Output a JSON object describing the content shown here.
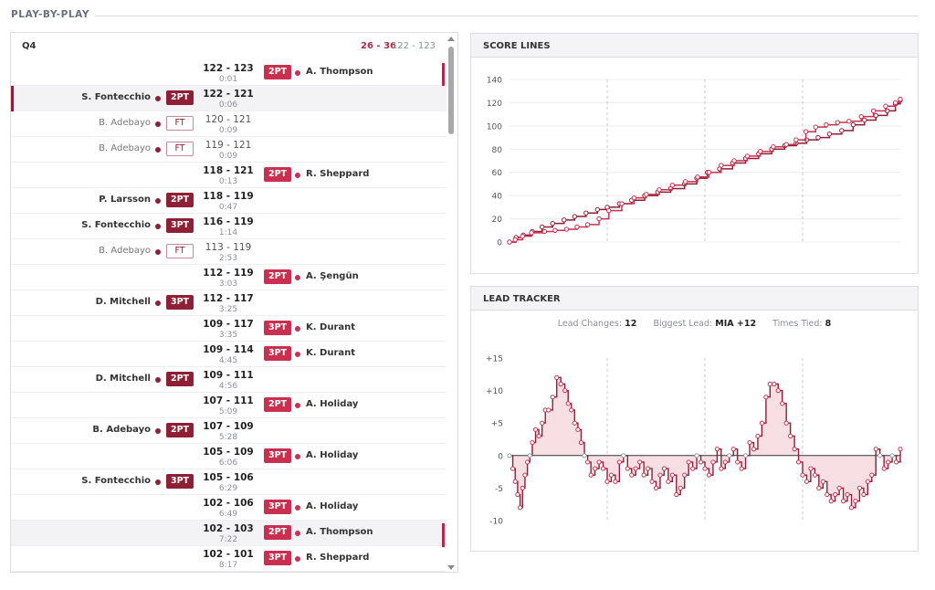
{
  "section_title": "PLAY-BY-PLAY",
  "pbp": {
    "period": "Q4",
    "quarter_score": "26 - 36",
    "total_score": "122 - 123",
    "rows": [
      {
        "score": "122 - 123",
        "time": "0:01",
        "side": "right",
        "player": "A. Thompson",
        "type": "2PT",
        "shaded": false,
        "mark": "right"
      },
      {
        "score": "122 - 121",
        "time": "0:06",
        "side": "left",
        "player": "S. Fontecchio",
        "type": "2PT",
        "shaded": true,
        "mark": "left"
      },
      {
        "score": "120 - 121",
        "time": "0:09",
        "side": "left",
        "player": "B. Adebayo",
        "type": "FT",
        "shaded": false,
        "mark": ""
      },
      {
        "score": "119 - 121",
        "time": "0:09",
        "side": "left",
        "player": "B. Adebayo",
        "type": "FT",
        "shaded": false,
        "mark": ""
      },
      {
        "score": "118 - 121",
        "time": "0:13",
        "side": "right",
        "player": "R. Sheppard",
        "type": "2PT",
        "shaded": false,
        "mark": ""
      },
      {
        "score": "118 - 119",
        "time": "0:47",
        "side": "left",
        "player": "P. Larsson",
        "type": "2PT",
        "shaded": false,
        "mark": ""
      },
      {
        "score": "116 - 119",
        "time": "1:14",
        "side": "left",
        "player": "S. Fontecchio",
        "type": "3PT",
        "shaded": false,
        "mark": ""
      },
      {
        "score": "113 - 119",
        "time": "2:53",
        "side": "left",
        "player": "B. Adebayo",
        "type": "FT",
        "shaded": false,
        "mark": ""
      },
      {
        "score": "112 - 119",
        "time": "3:03",
        "side": "right",
        "player": "A. Şengün",
        "type": "2PT",
        "shaded": false,
        "mark": ""
      },
      {
        "score": "112 - 117",
        "time": "3:25",
        "side": "left",
        "player": "D. Mitchell",
        "type": "3PT",
        "shaded": false,
        "mark": ""
      },
      {
        "score": "109 - 117",
        "time": "3:35",
        "side": "right",
        "player": "K. Durant",
        "type": "3PT",
        "shaded": false,
        "mark": ""
      },
      {
        "score": "109 - 114",
        "time": "4:45",
        "side": "right",
        "player": "K. Durant",
        "type": "3PT",
        "shaded": false,
        "mark": ""
      },
      {
        "score": "109 - 111",
        "time": "4:56",
        "side": "left",
        "player": "D. Mitchell",
        "type": "2PT",
        "shaded": false,
        "mark": ""
      },
      {
        "score": "107 - 111",
        "time": "5:09",
        "side": "right",
        "player": "A. Holiday",
        "type": "2PT",
        "shaded": false,
        "mark": ""
      },
      {
        "score": "107 - 109",
        "time": "5:28",
        "side": "left",
        "player": "B. Adebayo",
        "type": "2PT",
        "shaded": false,
        "mark": ""
      },
      {
        "score": "105 - 109",
        "time": "6:06",
        "side": "right",
        "player": "A. Holiday",
        "type": "3PT",
        "shaded": false,
        "mark": ""
      },
      {
        "score": "105 - 106",
        "time": "6:29",
        "side": "left",
        "player": "S. Fontecchio",
        "type": "3PT",
        "shaded": false,
        "mark": ""
      },
      {
        "score": "102 - 106",
        "time": "6:49",
        "side": "right",
        "player": "A. Holiday",
        "type": "3PT",
        "shaded": false,
        "mark": ""
      },
      {
        "score": "102 - 103",
        "time": "7:22",
        "side": "right",
        "player": "A. Thompson",
        "type": "2PT",
        "shaded": true,
        "mark": "right"
      },
      {
        "score": "102 - 101",
        "time": "8:17",
        "side": "right",
        "player": "R. Sheppard",
        "type": "3PT",
        "shaded": false,
        "mark": ""
      }
    ]
  },
  "colors": {
    "team_a": "#8e1f35",
    "team_b": "#c9304f",
    "fill": "#f6d9df",
    "neutral": "#8fa3ad"
  },
  "chart_data": [
    {
      "type": "line",
      "title": "SCORE LINES",
      "xlim": [
        0,
        48
      ],
      "ylim": [
        0,
        140
      ],
      "yticks": [
        0,
        20,
        40,
        60,
        80,
        100,
        120,
        140
      ],
      "xgrid": [
        12,
        24,
        36
      ],
      "series": [
        {
          "x": [
            0,
            0.8,
            1.7,
            2.8,
            4,
            5.3,
            6.7,
            8,
            9.4,
            10.8,
            12,
            13.5,
            15,
            16.6,
            18.2,
            19.8,
            21.5,
            23,
            24.3,
            25.8,
            27.4,
            29,
            30.6,
            32.2,
            33.8,
            35.2,
            36.5,
            37.9,
            39.3,
            40.8,
            42.2,
            43.6,
            45,
            46.4,
            47.4,
            48
          ],
          "y": [
            0,
            4,
            6,
            9,
            13,
            16,
            19,
            22,
            25,
            28,
            30,
            33,
            36,
            40,
            43,
            46,
            50,
            55,
            60,
            63,
            68,
            72,
            76,
            80,
            83,
            85,
            88,
            90,
            93,
            96,
            101,
            105,
            109,
            113,
            119,
            122
          ]
        },
        {
          "x": [
            0,
            0.7,
            1.6,
            2.7,
            4.3,
            5.6,
            7,
            8.3,
            9.6,
            11,
            12.2,
            13.8,
            15.3,
            16.8,
            18.4,
            20,
            21.6,
            23.1,
            24.5,
            26,
            27.6,
            29.2,
            30.8,
            32.4,
            34,
            35.2,
            36.4,
            37.6,
            38.9,
            40.3,
            41.7,
            43.2,
            44.7,
            46.2,
            47.4,
            48
          ],
          "y": [
            0,
            2,
            5,
            8,
            9,
            10,
            11,
            13,
            15,
            20,
            27,
            33,
            38,
            41,
            45,
            49,
            52,
            56,
            60,
            66,
            70,
            74,
            78,
            82,
            84,
            88,
            95,
            99,
            101,
            103,
            104,
            108,
            113,
            117,
            120,
            123
          ]
        }
      ]
    },
    {
      "type": "area",
      "title": "LEAD TRACKER",
      "stats": {
        "lead_changes_label": "Lead Changes:",
        "lead_changes": "12",
        "biggest_lead_label": "Biggest Lead:",
        "biggest_lead": "MIA +12",
        "times_tied_label": "Times Tied:",
        "times_tied": "8"
      },
      "xlim": [
        0,
        48
      ],
      "ylim": [
        -10,
        15
      ],
      "yticks": [
        -10,
        -5,
        0,
        5,
        10,
        15
      ],
      "ytick_labels": [
        "-10",
        "-5",
        "0",
        "+5",
        "+10",
        "+15"
      ],
      "xgrid": [
        12,
        24,
        36
      ],
      "lead": {
        "x": [
          0,
          0.4,
          0.7,
          1.0,
          1.3,
          1.6,
          1.9,
          2.2,
          2.5,
          2.8,
          3.2,
          3.6,
          4.0,
          4.4,
          4.8,
          5.3,
          5.8,
          6.3,
          6.8,
          7.2,
          7.6,
          8.0,
          8.4,
          8.8,
          9.2,
          9.6,
          10.0,
          10.5,
          11.0,
          11.5,
          12.0,
          12.5,
          13.0,
          13.5,
          14.0,
          14.5,
          15.0,
          15.5,
          16.0,
          16.5,
          17.0,
          17.5,
          18.0,
          18.5,
          19.0,
          19.5,
          20.0,
          20.5,
          21.0,
          21.5,
          22.0,
          22.5,
          23.0,
          23.5,
          24.0,
          24.5,
          25.0,
          25.5,
          26.0,
          26.5,
          27.0,
          27.5,
          28.0,
          28.5,
          29.0,
          29.5,
          30.0,
          30.5,
          31.0,
          31.5,
          32.0,
          32.5,
          33.0,
          33.5,
          34.0,
          34.5,
          35.0,
          35.5,
          36.0,
          36.5,
          37.0,
          37.5,
          38.0,
          38.5,
          39.0,
          39.5,
          40.0,
          40.5,
          41.0,
          41.5,
          42.0,
          42.5,
          43.0,
          43.5,
          44.0,
          44.5,
          45.0,
          45.5,
          46.0,
          46.5,
          47.0,
          47.5,
          48.0
        ],
        "y": [
          0,
          -2,
          -4,
          -6,
          -8,
          -5,
          -3,
          -1,
          0,
          2,
          4,
          3,
          5,
          7,
          7,
          9,
          12,
          11,
          10,
          8,
          7,
          5,
          4,
          2,
          0,
          -1,
          -3,
          -2,
          -1,
          -2,
          -4,
          -3,
          -4,
          -1,
          0,
          -2,
          -3,
          -2,
          -1,
          -3,
          -2,
          -4,
          -5,
          -3,
          -2,
          -4,
          -3,
          -6,
          -5,
          -3,
          -1,
          -2,
          0,
          -1,
          -2,
          -3,
          -1,
          1,
          -2,
          -1,
          0,
          1,
          -1,
          -2,
          0,
          2,
          1,
          3,
          5,
          9,
          11,
          11,
          10,
          8,
          5,
          3,
          1,
          -1,
          -3,
          -4,
          -2,
          -3,
          -5,
          -4,
          -6,
          -7,
          -6,
          -5,
          -7,
          -6,
          -8,
          -7,
          -5,
          -6,
          -4,
          -3,
          1,
          0,
          -2,
          -1,
          0,
          -1,
          1
        ]
      }
    }
  ]
}
